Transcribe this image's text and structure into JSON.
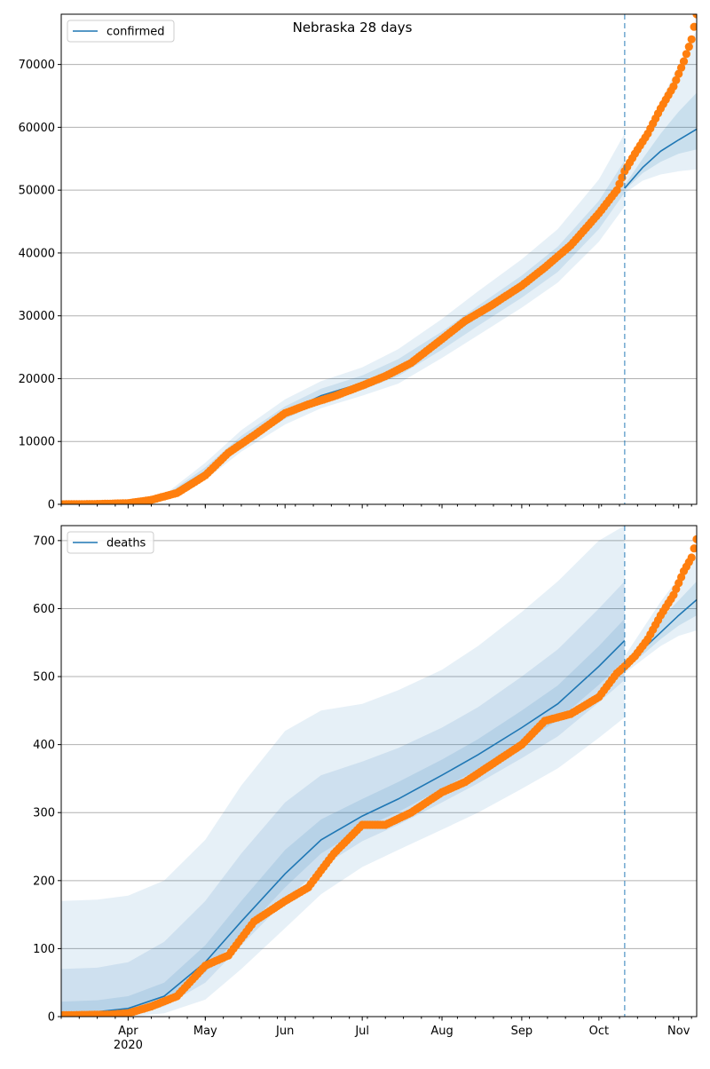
{
  "figure": {
    "title": "Nebraska 28 days",
    "colors": {
      "model": "#1f77b4",
      "observed": "#ff7f0e",
      "band": "#1f77b4",
      "grid": "#b0b0b0"
    }
  },
  "chart_data": [
    {
      "type": "line",
      "name": "confirmed",
      "legend": "confirmed",
      "legend_position": "top-left",
      "grid": "horizontal",
      "x_axis": {
        "start": "2020-03-06",
        "end": "2020-11-08",
        "tick_labels": [
          "Apr\n2020",
          "May",
          "Jun",
          "Jul",
          "Aug",
          "Sep",
          "Oct",
          "Nov"
        ],
        "tick_dates": [
          "2020-04-01",
          "2020-05-01",
          "2020-06-01",
          "2020-07-01",
          "2020-08-01",
          "2020-09-01",
          "2020-10-01",
          "2020-11-01"
        ],
        "tick_labels_shown": false
      },
      "ylim": [
        0,
        78000
      ],
      "yticks": [
        0,
        10000,
        20000,
        30000,
        40000,
        50000,
        60000,
        70000
      ],
      "forecast_start": "2020-10-11",
      "model": {
        "x": [
          "2020-03-06",
          "2020-04-01",
          "2020-04-15",
          "2020-05-01",
          "2020-05-15",
          "2020-06-01",
          "2020-06-15",
          "2020-07-01",
          "2020-07-15",
          "2020-08-01",
          "2020-08-15",
          "2020-09-01",
          "2020-09-15",
          "2020-10-01",
          "2020-10-11"
        ],
        "y": [
          0,
          250,
          1100,
          5200,
          10000,
          14600,
          17300,
          19300,
          21700,
          26000,
          30000,
          34700,
          39000,
          46000,
          52000
        ]
      },
      "bands_historical": {
        "x": [
          "2020-03-06",
          "2020-04-01",
          "2020-04-15",
          "2020-05-01",
          "2020-05-15",
          "2020-06-01",
          "2020-06-15",
          "2020-07-01",
          "2020-07-15",
          "2020-08-01",
          "2020-08-15",
          "2020-09-01",
          "2020-09-15",
          "2020-10-01",
          "2020-10-11"
        ],
        "outer_low": [
          0,
          150,
          700,
          3900,
          8400,
          12700,
          15300,
          17300,
          19200,
          23300,
          26900,
          31300,
          35300,
          41800,
          47400
        ],
        "outer_high": [
          0,
          350,
          1500,
          6600,
          11800,
          16700,
          19600,
          21800,
          24700,
          29500,
          33900,
          39000,
          43800,
          51700,
          59000
        ],
        "inner_low": [
          0,
          200,
          900,
          4500,
          9200,
          13600,
          16200,
          18200,
          20400,
          24600,
          28400,
          32900,
          37000,
          43800,
          49600
        ],
        "inner_high": [
          0,
          300,
          1300,
          5900,
          10900,
          15600,
          18400,
          20500,
          23100,
          27500,
          31600,
          36400,
          41000,
          48300,
          54700
        ]
      },
      "forecast": {
        "x": [
          "2020-10-11",
          "2020-10-18",
          "2020-10-25",
          "2020-11-01",
          "2020-11-08"
        ],
        "y": [
          50300,
          53600,
          56200,
          58000,
          59700
        ],
        "outer_low": [
          49500,
          51500,
          52500,
          53000,
          53300
        ],
        "outer_high": [
          51500,
          57500,
          64000,
          70000,
          75500
        ],
        "inner_low": [
          50000,
          52700,
          54500,
          55800,
          56500
        ],
        "inner_high": [
          50800,
          55000,
          59000,
          62500,
          65500
        ]
      },
      "observed": {
        "x": [
          "2020-03-06",
          "2020-03-20",
          "2020-04-01",
          "2020-04-10",
          "2020-04-20",
          "2020-05-01",
          "2020-05-10",
          "2020-05-20",
          "2020-06-01",
          "2020-06-10",
          "2020-06-20",
          "2020-07-01",
          "2020-07-10",
          "2020-07-20",
          "2020-08-01",
          "2020-08-10",
          "2020-08-20",
          "2020-09-01",
          "2020-09-10",
          "2020-09-20",
          "2020-10-01",
          "2020-10-08",
          "2020-10-11",
          "2020-10-15",
          "2020-10-20",
          "2020-10-25",
          "2020-10-30",
          "2020-11-03",
          "2020-11-06",
          "2020-11-08"
        ],
        "y": [
          0,
          50,
          180,
          700,
          1800,
          4600,
          8200,
          11000,
          14500,
          15900,
          17200,
          18900,
          20400,
          22500,
          26300,
          29200,
          31600,
          34800,
          37700,
          41200,
          46300,
          50000,
          53000,
          55800,
          59000,
          63000,
          66500,
          70500,
          74000,
          78000
        ]
      }
    },
    {
      "type": "line",
      "name": "deaths",
      "legend": "deaths",
      "legend_position": "top-left",
      "grid": "horizontal",
      "x_axis": {
        "start": "2020-03-06",
        "end": "2020-11-08",
        "tick_labels": [
          "Apr\n2020",
          "May",
          "Jun",
          "Jul",
          "Aug",
          "Sep",
          "Oct",
          "Nov"
        ],
        "tick_dates": [
          "2020-04-01",
          "2020-05-01",
          "2020-06-01",
          "2020-07-01",
          "2020-08-01",
          "2020-09-01",
          "2020-10-01",
          "2020-11-01"
        ],
        "tick_labels_shown": true
      },
      "ylim": [
        0,
        722
      ],
      "yticks": [
        0,
        100,
        200,
        300,
        400,
        500,
        600,
        700
      ],
      "forecast_start": "2020-10-11",
      "model": {
        "x": [
          "2020-03-06",
          "2020-03-20",
          "2020-04-01",
          "2020-04-15",
          "2020-05-01",
          "2020-05-15",
          "2020-06-01",
          "2020-06-15",
          "2020-07-01",
          "2020-07-15",
          "2020-08-01",
          "2020-08-15",
          "2020-09-01",
          "2020-09-15",
          "2020-10-01",
          "2020-10-11"
        ],
        "y": [
          5,
          7,
          12,
          30,
          80,
          140,
          210,
          260,
          295,
          320,
          355,
          385,
          425,
          460,
          515,
          553
        ]
      },
      "bands_historical": {
        "x": [
          "2020-03-06",
          "2020-03-20",
          "2020-04-01",
          "2020-04-15",
          "2020-05-01",
          "2020-05-15",
          "2020-06-01",
          "2020-06-15",
          "2020-07-01",
          "2020-07-15",
          "2020-08-01",
          "2020-08-15",
          "2020-09-01",
          "2020-09-15",
          "2020-10-01",
          "2020-10-11"
        ],
        "outer_low": [
          0,
          0,
          0,
          5,
          25,
          70,
          130,
          180,
          220,
          245,
          275,
          300,
          335,
          365,
          410,
          440
        ],
        "outer_high": [
          170,
          172,
          178,
          200,
          260,
          340,
          420,
          450,
          460,
          480,
          510,
          545,
          595,
          640,
          700,
          722
        ],
        "mid_low": [
          0,
          0,
          2,
          15,
          50,
          105,
          170,
          220,
          258,
          282,
          315,
          343,
          380,
          412,
          462,
          495
        ],
        "mid_high": [
          70,
          72,
          80,
          110,
          170,
          240,
          315,
          355,
          375,
          395,
          425,
          455,
          500,
          540,
          600,
          640
        ],
        "inner_low": [
          2,
          3,
          6,
          22,
          65,
          122,
          190,
          240,
          277,
          301,
          335,
          364,
          402,
          436,
          488,
          524
        ],
        "inner_high": [
          22,
          24,
          30,
          50,
          105,
          170,
          245,
          290,
          320,
          345,
          378,
          408,
          450,
          487,
          545,
          585
        ]
      },
      "forecast": {
        "x": [
          "2020-10-11",
          "2020-10-18",
          "2020-10-25",
          "2020-11-01",
          "2020-11-08"
        ],
        "y": [
          515,
          540,
          565,
          590,
          613
        ],
        "outer_low": [
          505,
          525,
          545,
          560,
          568
        ],
        "outer_high": [
          530,
          570,
          610,
          645,
          675
        ],
        "inner_low": [
          510,
          532,
          555,
          575,
          590
        ],
        "inner_high": [
          522,
          552,
          585,
          612,
          640
        ]
      },
      "observed": {
        "x": [
          "2020-03-06",
          "2020-03-25",
          "2020-04-01",
          "2020-04-10",
          "2020-04-20",
          "2020-05-01",
          "2020-05-10",
          "2020-05-20",
          "2020-06-01",
          "2020-06-10",
          "2020-06-20",
          "2020-07-01",
          "2020-07-10",
          "2020-07-20",
          "2020-08-01",
          "2020-08-10",
          "2020-08-20",
          "2020-09-01",
          "2020-09-10",
          "2020-09-20",
          "2020-10-01",
          "2020-10-08",
          "2020-10-11",
          "2020-10-15",
          "2020-10-20",
          "2020-10-25",
          "2020-10-30",
          "2020-11-03",
          "2020-11-06",
          "2020-11-08"
        ],
        "y": [
          2,
          3,
          5,
          15,
          30,
          75,
          90,
          140,
          170,
          190,
          240,
          282,
          282,
          300,
          330,
          345,
          370,
          400,
          435,
          445,
          470,
          505,
          515,
          530,
          555,
          590,
          620,
          655,
          675,
          702
        ]
      }
    }
  ]
}
